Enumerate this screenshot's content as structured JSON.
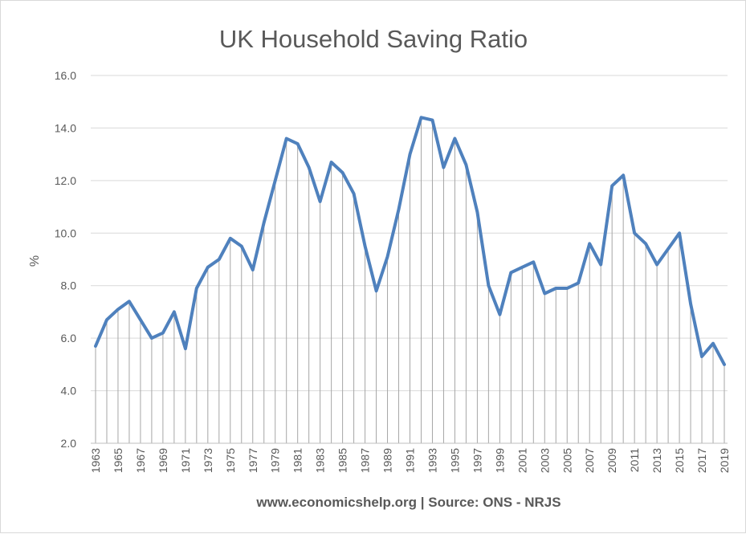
{
  "chart_data": {
    "type": "line",
    "title": "UK Household Saving Ratio",
    "ylabel": "%",
    "xlabel": "",
    "footnote": "www.economicshelp.org | Source: ONS - NRJS",
    "ylim": [
      2.0,
      16.0
    ],
    "y_ticks": [
      "2.0",
      "4.0",
      "6.0",
      "8.0",
      "10.0",
      "12.0",
      "14.0",
      "16.0"
    ],
    "x_tick_labels": [
      "1963",
      "1965",
      "1967",
      "1969",
      "1971",
      "1973",
      "1975",
      "1977",
      "1979",
      "1981",
      "1983",
      "1985",
      "1987",
      "1989",
      "1991",
      "1993",
      "1995",
      "1997",
      "1999",
      "2001",
      "2003",
      "2005",
      "2007",
      "2009",
      "2011",
      "2013",
      "2015",
      "2017",
      "2019"
    ],
    "grid": "horizontal",
    "drop_lines": true,
    "line_color": "#4f81bd",
    "categories": [
      1963,
      1964,
      1965,
      1966,
      1967,
      1968,
      1969,
      1970,
      1971,
      1972,
      1973,
      1974,
      1975,
      1976,
      1977,
      1978,
      1979,
      1980,
      1981,
      1982,
      1983,
      1984,
      1985,
      1986,
      1987,
      1988,
      1989,
      1990,
      1991,
      1992,
      1993,
      1994,
      1995,
      1996,
      1997,
      1998,
      1999,
      2000,
      2001,
      2002,
      2003,
      2004,
      2005,
      2006,
      2007,
      2008,
      2009,
      2010,
      2011,
      2012,
      2013,
      2014,
      2015,
      2016,
      2017,
      2018,
      2019
    ],
    "values": [
      5.7,
      6.7,
      7.1,
      7.4,
      6.7,
      6.0,
      6.2,
      7.0,
      5.6,
      7.9,
      8.7,
      9.0,
      9.8,
      9.5,
      8.6,
      10.4,
      12.0,
      13.6,
      13.4,
      12.5,
      11.2,
      12.7,
      12.3,
      11.5,
      9.5,
      7.8,
      9.1,
      10.9,
      13.0,
      14.4,
      14.3,
      12.5,
      13.6,
      12.6,
      10.8,
      8.0,
      6.9,
      8.5,
      8.7,
      8.9,
      7.7,
      7.9,
      7.9,
      8.1,
      9.6,
      8.8,
      11.8,
      12.2,
      10.0,
      9.6,
      8.8,
      9.4,
      10.0,
      7.3,
      5.3,
      5.8,
      5.0
    ]
  }
}
